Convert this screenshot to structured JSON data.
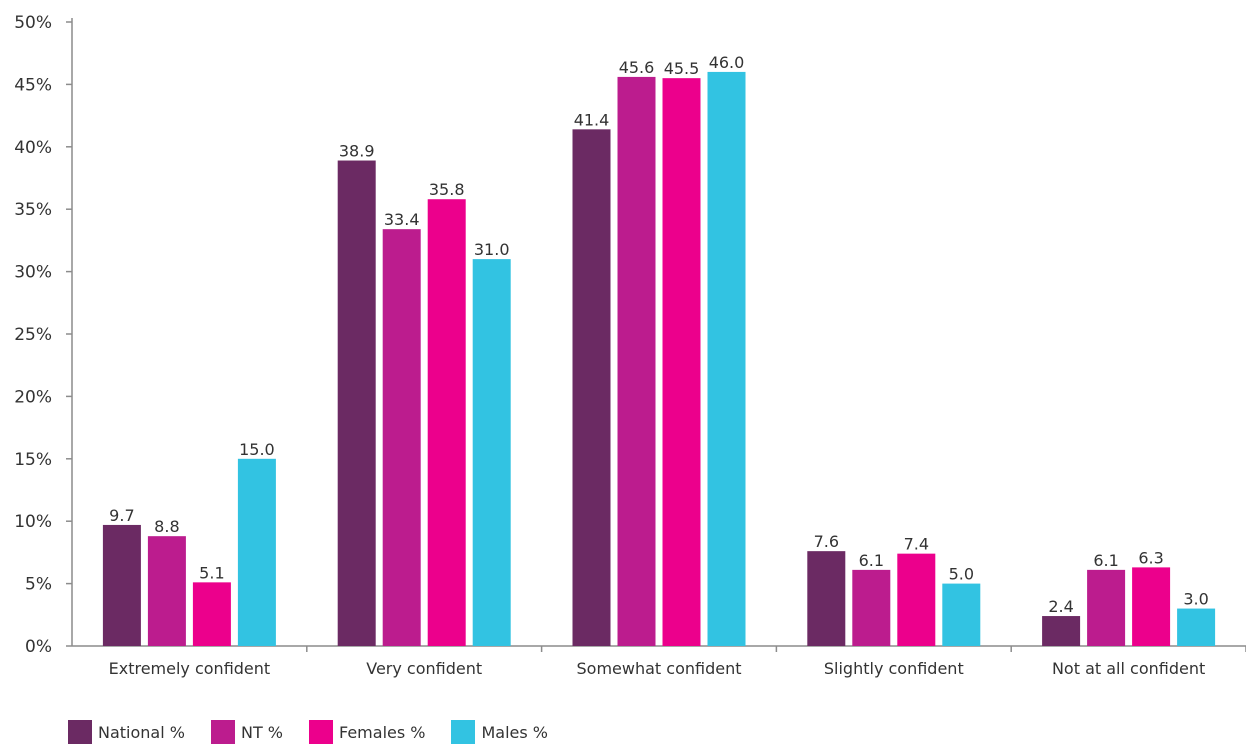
{
  "chart_data": {
    "type": "bar",
    "categories": [
      "Extremely confident",
      "Very confident",
      "Somewhat confident",
      "Slightly confident",
      "Not at all confident"
    ],
    "series": [
      {
        "name": "National %",
        "color": "#6b2a63",
        "values": [
          9.7,
          38.9,
          41.4,
          7.6,
          2.4
        ]
      },
      {
        "name": "NT %",
        "color": "#bc1c8e",
        "values": [
          8.8,
          33.4,
          45.6,
          6.1,
          6.1
        ]
      },
      {
        "name": "Females %",
        "color": "#ec008c",
        "values": [
          5.1,
          35.8,
          45.5,
          7.4,
          6.3
        ]
      },
      {
        "name": "Males %",
        "color": "#32c3e2",
        "values": [
          15.0,
          31.0,
          46.0,
          5.0,
          3.0
        ]
      }
    ],
    "value_labels": [
      [
        "9.7",
        "38.9",
        "41.4",
        "7.6",
        "2.4"
      ],
      [
        "8.8",
        "33.4",
        "45.6",
        "6.1",
        "6.1"
      ],
      [
        "5.1",
        "35.8",
        "45.5",
        "7.4",
        "6.3"
      ],
      [
        "15.0",
        "31.0",
        "46.0",
        "5.0",
        "3.0"
      ]
    ],
    "y_ticks": [
      "0%",
      "5%",
      "10%",
      "15%",
      "20%",
      "25%",
      "30%",
      "35%",
      "40%",
      "45%",
      "50%"
    ],
    "ylim": [
      0,
      50
    ],
    "grid": false,
    "legend_position": "bottom-left"
  }
}
